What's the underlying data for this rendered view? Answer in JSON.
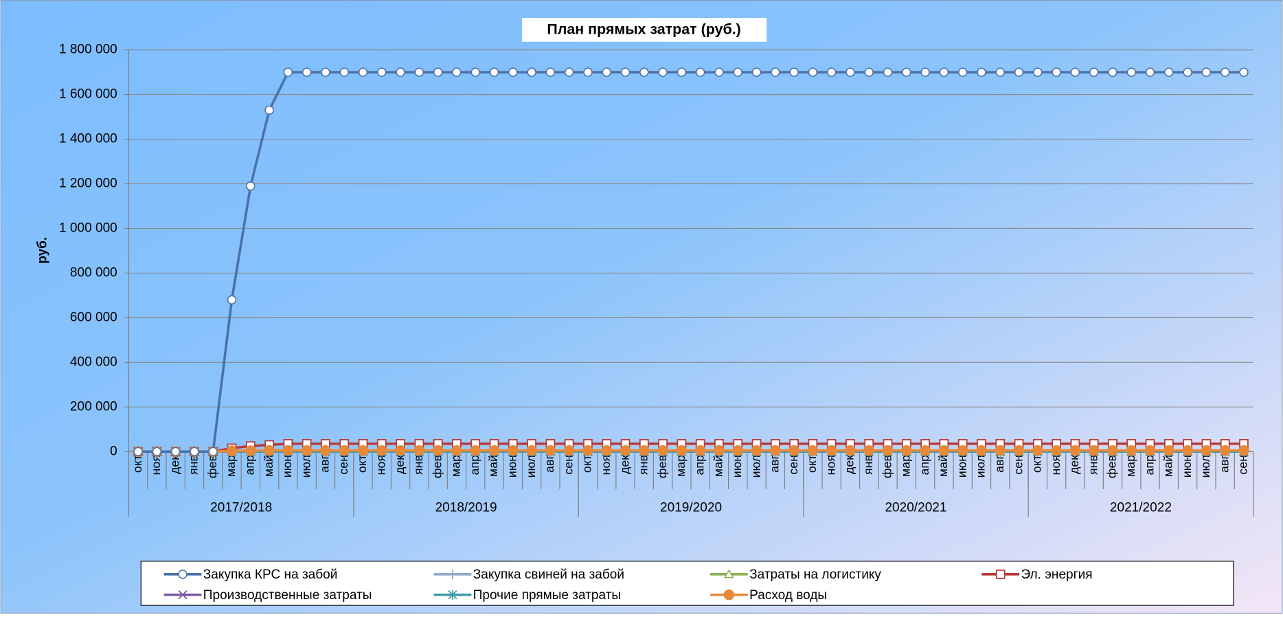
{
  "chart_data": {
    "type": "line",
    "title": "План прямых затрат (руб.)",
    "y_label": "руб.",
    "categories": [
      "окт",
      "ноя",
      "дек",
      "янв",
      "фев",
      "мар",
      "апр",
      "май",
      "июн",
      "июл",
      "авг",
      "сен",
      "окт",
      "ноя",
      "дек",
      "янв",
      "фев",
      "мар",
      "апр",
      "май",
      "июн",
      "июл",
      "авг",
      "сен",
      "окт",
      "ноя",
      "дек",
      "янв",
      "фев",
      "мар",
      "апр",
      "май",
      "июн",
      "июл",
      "авг",
      "сен",
      "окт",
      "ноя",
      "дек",
      "янв",
      "фев",
      "мар",
      "апр",
      "май",
      "июн",
      "июл",
      "авг",
      "сен",
      "окт",
      "ноя",
      "дек",
      "янв",
      "фев",
      "мар",
      "апр",
      "май",
      "июн",
      "июл",
      "авг",
      "сен"
    ],
    "groups": [
      "2017/2018",
      "2018/2019",
      "2019/2020",
      "2020/2021",
      "2021/2022"
    ],
    "ylim": [
      0,
      1800000
    ],
    "yticks": [
      0,
      {
        "value": 200000,
        "label": "200 000"
      },
      {
        "value": 400000,
        "label": "400 000"
      },
      {
        "value": 600000,
        "label": "600 000"
      },
      {
        "value": 800000,
        "label": "800 000"
      },
      {
        "value": 1000000,
        "label": "1 000 000"
      },
      {
        "value": 1200000,
        "label": "1 200 000"
      },
      {
        "value": 1400000,
        "label": "1 400 000"
      },
      {
        "value": 1600000,
        "label": "1 600 000"
      },
      {
        "value": 1800000,
        "label": "1 800 000"
      }
    ],
    "grid": true,
    "legend": "bottom",
    "series": [
      {
        "name": "Закупка КРС на забой",
        "color": "#4a72a8",
        "marker": "circle-open",
        "values": [
          0,
          0,
          0,
          0,
          0,
          680000,
          1190000,
          1530000,
          1700000,
          1700000,
          1700000,
          1700000,
          1700000,
          1700000,
          1700000,
          1700000,
          1700000,
          1700000,
          1700000,
          1700000,
          1700000,
          1700000,
          1700000,
          1700000,
          1700000,
          1700000,
          1700000,
          1700000,
          1700000,
          1700000,
          1700000,
          1700000,
          1700000,
          1700000,
          1700000,
          1700000,
          1700000,
          1700000,
          1700000,
          1700000,
          1700000,
          1700000,
          1700000,
          1700000,
          1700000,
          1700000,
          1700000,
          1700000,
          1700000,
          1700000,
          1700000,
          1700000,
          1700000,
          1700000,
          1700000,
          1700000,
          1700000,
          1700000,
          1700000,
          1700000
        ]
      },
      {
        "name": "Закупка свиней на забой",
        "color": "#95a8cc",
        "marker": "plus",
        "values": [
          0,
          0,
          0,
          0,
          0,
          0,
          0,
          0,
          0,
          0,
          0,
          0,
          0,
          0,
          0,
          0,
          0,
          0,
          0,
          0,
          0,
          0,
          0,
          0,
          0,
          0,
          0,
          0,
          0,
          0,
          0,
          0,
          0,
          0,
          0,
          0,
          0,
          0,
          0,
          0,
          0,
          0,
          0,
          0,
          0,
          0,
          0,
          0,
          0,
          0,
          0,
          0,
          0,
          0,
          0,
          0,
          0,
          0,
          0,
          0
        ]
      },
      {
        "name": "Затраты на логистику",
        "color": "#8db255",
        "marker": "triangle-open",
        "values": [
          0,
          0,
          0,
          0,
          0,
          0,
          0,
          0,
          0,
          0,
          0,
          0,
          0,
          0,
          0,
          0,
          0,
          0,
          0,
          0,
          0,
          0,
          0,
          0,
          0,
          0,
          0,
          0,
          0,
          0,
          0,
          0,
          0,
          0,
          0,
          0,
          0,
          0,
          0,
          0,
          0,
          0,
          0,
          0,
          0,
          0,
          0,
          0,
          0,
          0,
          0,
          0,
          0,
          0,
          0,
          0,
          0,
          0,
          0,
          0
        ]
      },
      {
        "name": "Эл. энергия",
        "color": "#b83a37",
        "marker": "square-open",
        "values": [
          0,
          0,
          0,
          0,
          0,
          15000,
          25000,
          30000,
          35000,
          35000,
          35000,
          35000,
          35000,
          35000,
          35000,
          35000,
          35000,
          35000,
          35000,
          35000,
          35000,
          35000,
          35000,
          35000,
          35000,
          35000,
          35000,
          35000,
          35000,
          35000,
          35000,
          35000,
          35000,
          35000,
          35000,
          35000,
          35000,
          35000,
          35000,
          35000,
          35000,
          35000,
          35000,
          35000,
          35000,
          35000,
          35000,
          35000,
          35000,
          35000,
          35000,
          35000,
          35000,
          35000,
          35000,
          35000,
          35000,
          35000,
          35000,
          35000
        ]
      },
      {
        "name": "Производственные затраты",
        "color": "#7b5a9e",
        "marker": "x",
        "values": [
          0,
          0,
          0,
          0,
          0,
          0,
          0,
          0,
          0,
          0,
          0,
          0,
          0,
          0,
          0,
          0,
          0,
          0,
          0,
          0,
          0,
          0,
          0,
          0,
          0,
          0,
          0,
          0,
          0,
          0,
          0,
          0,
          0,
          0,
          0,
          0,
          0,
          0,
          0,
          0,
          0,
          0,
          0,
          0,
          0,
          0,
          0,
          0,
          0,
          0,
          0,
          0,
          0,
          0,
          0,
          0,
          0,
          0,
          0,
          0
        ]
      },
      {
        "name": "Прочие прямые затраты",
        "color": "#3e9aaa",
        "marker": "star",
        "values": [
          0,
          0,
          0,
          0,
          0,
          0,
          0,
          0,
          0,
          0,
          0,
          0,
          0,
          0,
          0,
          0,
          0,
          0,
          0,
          0,
          0,
          0,
          0,
          0,
          0,
          0,
          0,
          0,
          0,
          0,
          0,
          0,
          0,
          0,
          0,
          0,
          0,
          0,
          0,
          0,
          0,
          0,
          0,
          0,
          0,
          0,
          0,
          0,
          0,
          0,
          0,
          0,
          0,
          0,
          0,
          0,
          0,
          0,
          0,
          0
        ]
      },
      {
        "name": "Расход воды",
        "color": "#e8893a",
        "marker": "circle-filled",
        "values": [
          0,
          0,
          0,
          0,
          0,
          3000,
          4000,
          5000,
          5000,
          5000,
          5000,
          5000,
          5000,
          5000,
          5000,
          5000,
          5000,
          5000,
          5000,
          5000,
          5000,
          5000,
          5000,
          5000,
          5000,
          5000,
          5000,
          5000,
          5000,
          5000,
          5000,
          5000,
          5000,
          5000,
          5000,
          5000,
          5000,
          5000,
          5000,
          5000,
          5000,
          5000,
          5000,
          5000,
          5000,
          5000,
          5000,
          5000,
          5000,
          5000,
          5000,
          5000,
          5000,
          5000,
          5000,
          5000,
          5000,
          5000,
          5000,
          5000
        ]
      }
    ]
  }
}
